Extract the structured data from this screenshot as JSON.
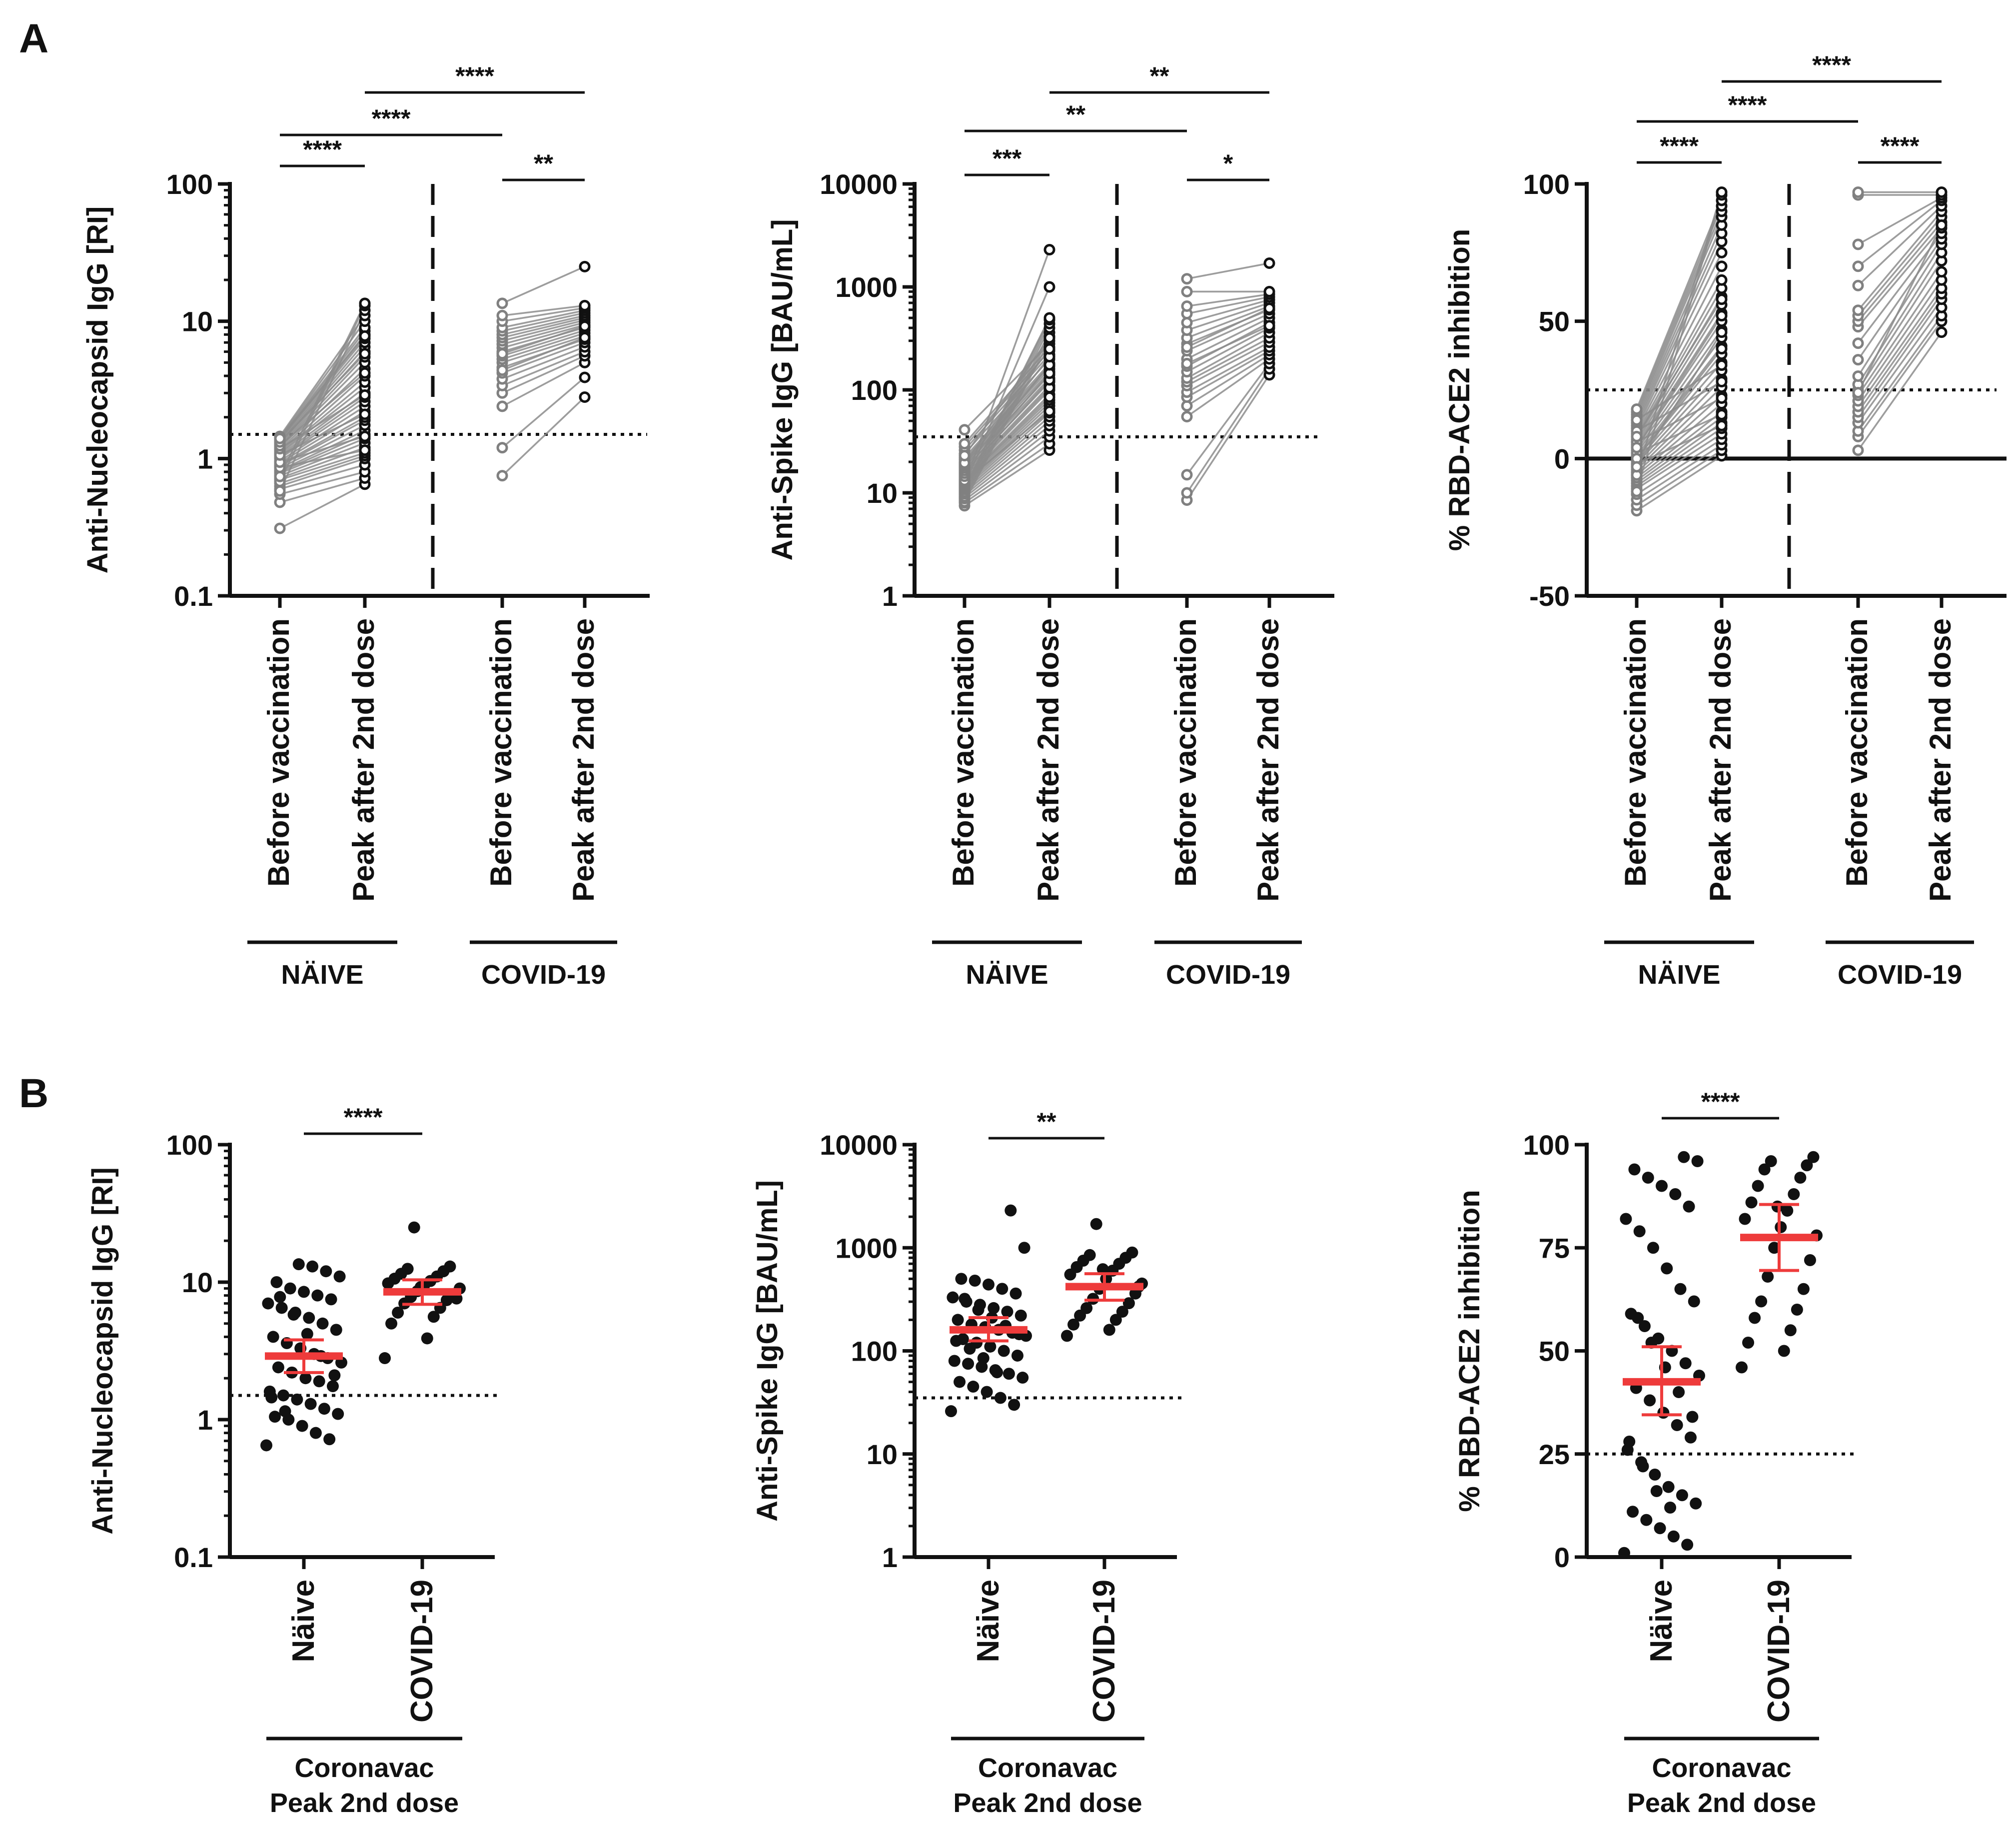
{
  "panel_labels": {
    "a": "A",
    "b": "B"
  },
  "chart_data": [
    {
      "id": "A1",
      "panel": "A",
      "type": "scatter",
      "ylabel": "Anti-Nucleocapsid IgG [RI]",
      "yscale": "log",
      "ylim": [
        0.1,
        100
      ],
      "yticks": [
        "0.1",
        "1",
        "10",
        "100"
      ],
      "categories": [
        "Before vaccination",
        "Peak after 2nd dose",
        "Before vaccination",
        "Peak after 2nd dose"
      ],
      "groups": [
        "NÄIVE",
        "COVID-19"
      ],
      "threshold": 1.5,
      "significance": [
        {
          "from": 0,
          "to": 1,
          "label": "****"
        },
        {
          "from": 0,
          "to": 2,
          "label": "****"
        },
        {
          "from": 1,
          "to": 3,
          "label": "****"
        },
        {
          "from": 2,
          "to": 3,
          "label": "**"
        }
      ],
      "paired_series": [
        {
          "name": "NÄIVE",
          "before": [
            0.31,
            0.48,
            0.55,
            0.6,
            0.63,
            0.66,
            0.7,
            0.72,
            0.75,
            0.78,
            0.8,
            0.82,
            0.85,
            0.88,
            0.9,
            0.93,
            0.96,
            1.0,
            1.02,
            1.05,
            1.08,
            1.1,
            1.13,
            1.16,
            1.2,
            1.22,
            1.25,
            1.28,
            1.3,
            1.33,
            1.36,
            1.38,
            1.4,
            1.42,
            1.45,
            0.58,
            0.68,
            0.74,
            0.86,
            0.94,
            1.06,
            1.18,
            1.24,
            1.32,
            1.4
          ],
          "after": [
            0.65,
            0.72,
            0.8,
            0.9,
            1.0,
            1.05,
            1.1,
            1.2,
            1.3,
            1.4,
            1.5,
            1.6,
            1.75,
            1.9,
            2.0,
            2.2,
            2.4,
            2.6,
            2.8,
            3.0,
            3.3,
            3.6,
            4.0,
            4.5,
            5.0,
            5.5,
            6.0,
            6.5,
            7.0,
            7.5,
            8.0,
            8.5,
            9.0,
            10.0,
            11.0,
            12.0,
            13.0,
            13.5,
            1.15,
            1.45,
            2.1,
            2.9,
            4.2,
            5.8,
            7.8
          ]
        },
        {
          "name": "COVID-19",
          "before": [
            0.75,
            1.2,
            2.4,
            3.0,
            3.4,
            3.8,
            4.2,
            4.6,
            5.0,
            5.3,
            5.6,
            6.0,
            6.4,
            6.8,
            7.2,
            7.6,
            8.0,
            8.5,
            9.0,
            10.0,
            11.0,
            13.5,
            4.4,
            5.8
          ],
          "after": [
            2.8,
            3.9,
            5.0,
            5.6,
            6.0,
            6.5,
            7.0,
            7.4,
            7.8,
            8.2,
            8.6,
            9.0,
            9.4,
            9.8,
            10.2,
            10.6,
            11.0,
            11.5,
            12.0,
            12.5,
            13.0,
            25.0,
            7.6,
            9.2
          ]
        }
      ]
    },
    {
      "id": "A2",
      "panel": "A",
      "type": "scatter",
      "ylabel": "Anti-Spike IgG [BAU/mL]",
      "yscale": "log",
      "ylim": [
        1,
        10000
      ],
      "yticks": [
        "1",
        "10",
        "100",
        "1000",
        "10000"
      ],
      "categories": [
        "Before vaccination",
        "Peak after 2nd dose",
        "Before vaccination",
        "Peak after 2nd dose"
      ],
      "groups": [
        "NÄIVE",
        "COVID-19"
      ],
      "threshold": 35,
      "significance": [
        {
          "from": 0,
          "to": 1,
          "label": "***"
        },
        {
          "from": 0,
          "to": 2,
          "label": "**"
        },
        {
          "from": 1,
          "to": 3,
          "label": "**"
        },
        {
          "from": 2,
          "to": 3,
          "label": "*"
        }
      ],
      "paired_series": [
        {
          "name": "NÄIVE",
          "before": [
            7.5,
            8,
            8.5,
            9,
            9.5,
            10,
            10.5,
            11,
            11.5,
            12,
            12.5,
            13,
            13.5,
            14,
            15,
            16,
            17,
            18,
            19,
            20,
            21,
            22,
            24,
            26,
            28,
            30,
            41,
            8.2,
            8.8,
            9.2,
            9.8,
            10.2,
            10.8,
            11.2,
            11.8,
            12.2,
            12.8,
            13.2,
            14.5,
            15.5,
            16.5,
            17.5,
            18.5,
            19.5,
            23
          ],
          "after": [
            26,
            30,
            35,
            40,
            45,
            50,
            55,
            60,
            65,
            70,
            75,
            80,
            90,
            100,
            110,
            120,
            130,
            140,
            150,
            160,
            170,
            180,
            200,
            220,
            240,
            260,
            280,
            300,
            330,
            360,
            400,
            440,
            480,
            500,
            1000,
            2300,
            62,
            85,
            105,
            125,
            145,
            175,
            210,
            250,
            320
          ]
        },
        {
          "name": "COVID-19",
          "before": [
            8.5,
            10,
            15,
            55,
            70,
            85,
            95,
            110,
            120,
            130,
            150,
            170,
            200,
            240,
            280,
            320,
            380,
            450,
            550,
            650,
            900,
            1200,
            180,
            260
          ],
          "after": [
            140,
            160,
            180,
            200,
            220,
            240,
            260,
            290,
            320,
            360,
            400,
            450,
            500,
            550,
            600,
            650,
            700,
            750,
            800,
            850,
            900,
            1700,
            420,
            620
          ]
        }
      ]
    },
    {
      "id": "A3",
      "panel": "A",
      "type": "scatter",
      "ylabel": "% RBD-ACE2 inhibition",
      "yscale": "linear",
      "ylim": [
        -50,
        100
      ],
      "yticks": [
        "-50",
        "0",
        "50",
        "100"
      ],
      "categories": [
        "Before vaccination",
        "Peak after 2nd dose",
        "Before vaccination",
        "Peak after 2nd dose"
      ],
      "groups": [
        "NÄIVE",
        "COVID-19"
      ],
      "threshold": 25,
      "significance": [
        {
          "from": 0,
          "to": 1,
          "label": "****"
        },
        {
          "from": 0,
          "to": 2,
          "label": "****"
        },
        {
          "from": 1,
          "to": 3,
          "label": "****"
        },
        {
          "from": 2,
          "to": 3,
          "label": "****"
        }
      ],
      "paired_series": [
        {
          "name": "NÄIVE",
          "before": [
            -19,
            -17,
            -15,
            -13,
            -11,
            -10,
            -9,
            -8,
            -7,
            -6,
            -5,
            -4,
            -3,
            -2,
            -1,
            0,
            1,
            2,
            3,
            4,
            5,
            6,
            7,
            8,
            9,
            10,
            11,
            12,
            13,
            14,
            15,
            16,
            17,
            18,
            -12,
            -6,
            -2,
            2,
            6,
            10,
            14,
            0,
            -3,
            4,
            8
          ],
          "after": [
            1,
            3,
            5,
            7,
            9,
            11,
            13,
            15,
            17,
            20,
            23,
            26,
            29,
            32,
            35,
            38,
            41,
            44,
            47,
            50,
            53,
            56,
            59,
            62,
            65,
            70,
            75,
            79,
            82,
            85,
            88,
            90,
            92,
            94,
            96,
            97,
            12,
            16,
            22,
            28,
            34,
            40,
            46,
            52,
            58
          ]
        },
        {
          "name": "COVID-19",
          "before": [
            3,
            8,
            10,
            13,
            15,
            17,
            19,
            21,
            23,
            25,
            27,
            30,
            36,
            42,
            48,
            50,
            52,
            54,
            63,
            70,
            78,
            96,
            97,
            24
          ],
          "after": [
            46,
            50,
            52,
            55,
            58,
            60,
            62,
            65,
            68,
            72,
            75,
            78,
            80,
            82,
            84,
            86,
            88,
            90,
            92,
            94,
            95,
            96,
            97,
            85
          ]
        }
      ]
    },
    {
      "id": "B1",
      "panel": "B",
      "type": "scatter",
      "ylabel": "Anti-Nucleocapsid IgG [RI]",
      "yscale": "log",
      "ylim": [
        0.1,
        100
      ],
      "yticks": [
        "0.1",
        "1",
        "10",
        "100"
      ],
      "categories": [
        "Näive",
        "COVID-19"
      ],
      "group_label": [
        "Coronavac",
        "Peak 2nd dose"
      ],
      "threshold": 1.5,
      "significance": [
        {
          "from": 0,
          "to": 1,
          "label": "****"
        }
      ],
      "means": [
        2.9,
        8.5
      ],
      "errors": [
        [
          2.2,
          3.8
        ],
        [
          6.9,
          10.4
        ]
      ]
    },
    {
      "id": "B2",
      "panel": "B",
      "type": "scatter",
      "ylabel": "Anti-Spike IgG [BAU/mL]",
      "yscale": "log",
      "ylim": [
        1,
        10000
      ],
      "yticks": [
        "1",
        "10",
        "100",
        "1000",
        "10000"
      ],
      "categories": [
        "Näive",
        "COVID-19"
      ],
      "group_label": [
        "Coronavac",
        "Peak 2nd dose"
      ],
      "threshold": 35,
      "significance": [
        {
          "from": 0,
          "to": 1,
          "label": "**"
        }
      ],
      "means": [
        160,
        420
      ],
      "errors": [
        [
          125,
          210
        ],
        [
          310,
          560
        ]
      ]
    },
    {
      "id": "B3",
      "panel": "B",
      "type": "scatter",
      "ylabel": "% RBD-ACE2 inhibition",
      "yscale": "linear",
      "ylim": [
        0,
        100
      ],
      "yticks": [
        "0",
        "25",
        "50",
        "75",
        "100"
      ],
      "categories": [
        "Näive",
        "COVID-19"
      ],
      "group_label": [
        "Coronavac",
        "Peak 2nd dose"
      ],
      "threshold": 25,
      "significance": [
        {
          "from": 0,
          "to": 1,
          "label": "****"
        }
      ],
      "means": [
        42.5,
        77.5
      ],
      "errors": [
        [
          34.5,
          51
        ],
        [
          69.5,
          85.5
        ]
      ]
    }
  ],
  "colors": {
    "paired_before": "#808080",
    "paired_after": "#111111",
    "lines": "#8c8c8c",
    "dots": "#111111",
    "mean": "#ee3b3b",
    "axis": "#111111"
  }
}
